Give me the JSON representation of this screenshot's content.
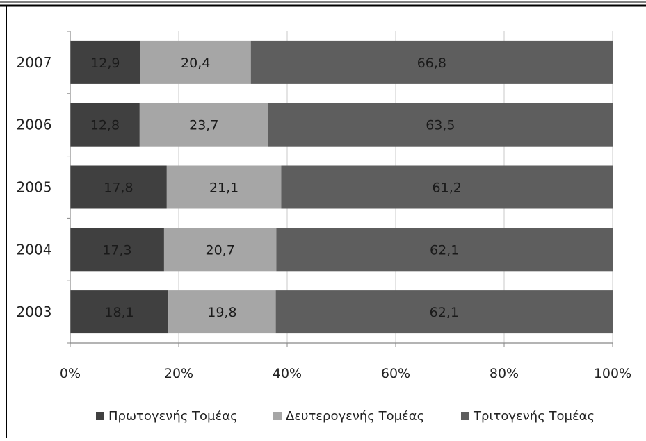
{
  "chart_data": {
    "type": "bar",
    "orientation": "horizontal",
    "stacked": true,
    "normalized_percent": true,
    "categories": [
      "2007",
      "2006",
      "2005",
      "2004",
      "2003"
    ],
    "series": [
      {
        "name": "Πρωτογενής Τομέας",
        "color": "#404040",
        "values": [
          12.9,
          12.8,
          17.8,
          17.3,
          18.1
        ],
        "labels": [
          "12,9",
          "12,8",
          "17,8",
          "17,3",
          "18,1"
        ]
      },
      {
        "name": "Δευτερογενής Τομέας",
        "color": "#a6a6a6",
        "values": [
          20.4,
          23.7,
          21.1,
          20.7,
          19.8
        ],
        "labels": [
          "20,4",
          "23,7",
          "21,1",
          "20,7",
          "19,8"
        ]
      },
      {
        "name": "Τριτογενής Τομέας",
        "color": "#5e5e5e",
        "values": [
          66.8,
          63.5,
          61.2,
          62.1,
          62.1
        ],
        "labels": [
          "66,8",
          "63,5",
          "61,2",
          "62,1",
          "62,1"
        ]
      }
    ],
    "xticks": [
      "0%",
      "20%",
      "40%",
      "60%",
      "80%",
      "100%"
    ],
    "xlim": [
      0,
      100
    ],
    "grid": true,
    "legend_position": "bottom"
  }
}
